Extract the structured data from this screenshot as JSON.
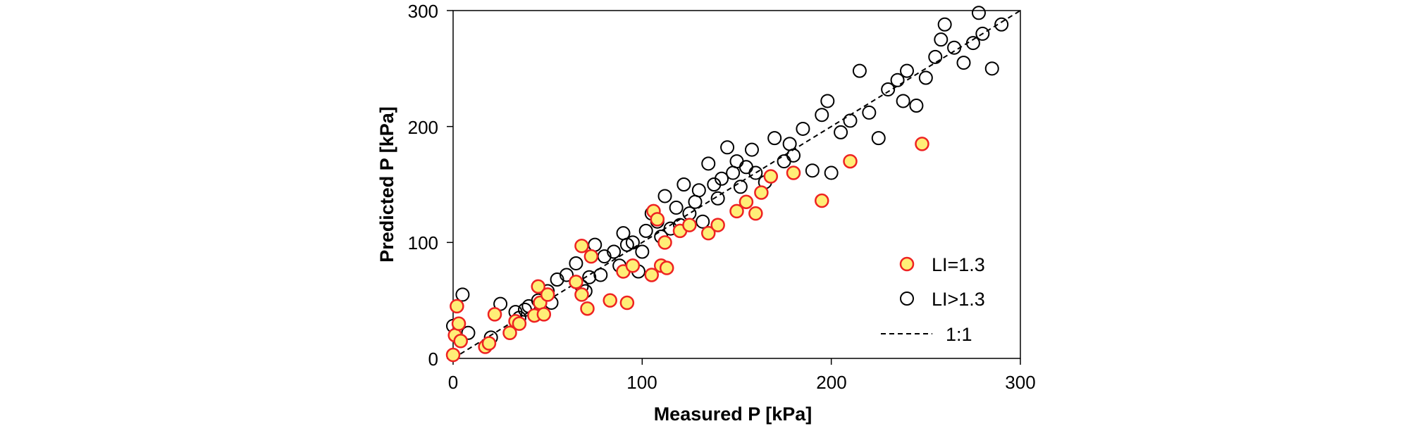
{
  "chart_data": {
    "type": "scatter",
    "xlabel": "Measured P [kPa]",
    "ylabel": "Predicted P [kPa]",
    "xlim": [
      0,
      300
    ],
    "ylim": [
      0,
      300
    ],
    "xticks": [
      "0",
      "100",
      "200",
      "300"
    ],
    "yticks": [
      "0",
      "100",
      "200",
      "300"
    ],
    "grid": false,
    "legend_position": "bottom-right",
    "colors": {
      "li_eq_fill": "#ffee77",
      "li_eq_edge": "#ee2222",
      "li_gt_fill": "#ffffff",
      "li_gt_edge": "#000000",
      "reference": "#000000"
    },
    "series": [
      {
        "name": "LI=1.3",
        "x": [
          0,
          1,
          2,
          3,
          4,
          17,
          19,
          22,
          30,
          33,
          35,
          43,
          45,
          46,
          48,
          50,
          65,
          68,
          68,
          71,
          73,
          83,
          90,
          92,
          95,
          105,
          106,
          108,
          110,
          112,
          113,
          120,
          125,
          135,
          140,
          150,
          155,
          160,
          163,
          168,
          180,
          195,
          210,
          248
        ],
        "y": [
          3,
          20,
          45,
          30,
          15,
          10,
          13,
          38,
          22,
          32,
          30,
          37,
          62,
          48,
          38,
          55,
          66,
          55,
          97,
          43,
          88,
          50,
          75,
          48,
          80,
          72,
          127,
          120,
          80,
          100,
          78,
          110,
          115,
          108,
          115,
          127,
          135,
          125,
          143,
          157,
          160,
          136,
          170,
          185
        ]
      },
      {
        "name": "LI>1.3",
        "x": [
          0,
          5,
          8,
          20,
          25,
          33,
          35,
          38,
          40,
          45,
          50,
          52,
          55,
          60,
          65,
          68,
          70,
          72,
          75,
          78,
          80,
          85,
          88,
          90,
          92,
          95,
          98,
          100,
          102,
          105,
          108,
          110,
          112,
          115,
          118,
          120,
          122,
          125,
          128,
          130,
          132,
          135,
          138,
          140,
          142,
          145,
          148,
          150,
          152,
          155,
          158,
          160,
          165,
          170,
          175,
          178,
          180,
          185,
          190,
          195,
          198,
          200,
          205,
          210,
          215,
          220,
          225,
          230,
          235,
          238,
          240,
          245,
          250,
          255,
          258,
          260,
          265,
          270,
          275,
          278,
          280,
          285,
          290
        ],
        "y": [
          28,
          55,
          22,
          18,
          47,
          40,
          35,
          42,
          45,
          50,
          58,
          48,
          68,
          72,
          82,
          62,
          58,
          70,
          98,
          72,
          88,
          92,
          80,
          108,
          98,
          100,
          75,
          92,
          110,
          125,
          118,
          105,
          140,
          112,
          130,
          115,
          150,
          125,
          135,
          145,
          118,
          168,
          150,
          138,
          155,
          182,
          160,
          170,
          148,
          165,
          180,
          160,
          152,
          190,
          170,
          185,
          175,
          198,
          162,
          210,
          222,
          160,
          195,
          205,
          248,
          212,
          190,
          232,
          240,
          222,
          248,
          218,
          242,
          260,
          275,
          288,
          268,
          255,
          272,
          298,
          280,
          250,
          288
        ]
      }
    ],
    "reference_line": {
      "name": "1:1",
      "x": [
        0,
        300
      ],
      "y": [
        0,
        300
      ]
    },
    "legend": {
      "entries": [
        {
          "label": "LI=1.3",
          "marker": "circle-filled"
        },
        {
          "label": "LI>1.3",
          "marker": "circle-open"
        },
        {
          "label": "1:1",
          "marker": "dashed-line"
        }
      ]
    }
  }
}
